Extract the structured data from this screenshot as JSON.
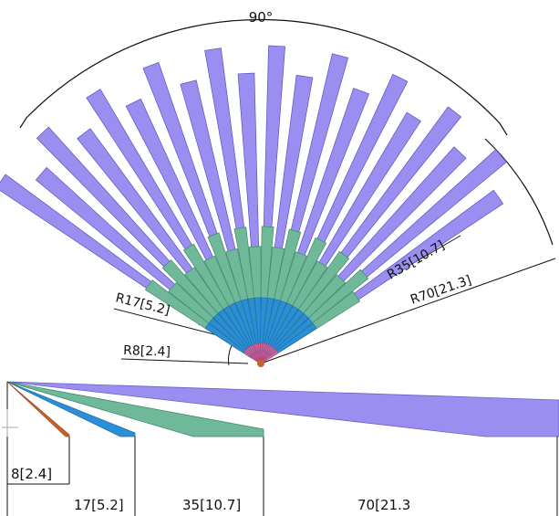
{
  "fan_view": {
    "angle_label": "90°",
    "radius_labels": {
      "r8": "R8[2.4]",
      "r17": "R17[5.2]",
      "r35": "R35[10.7]",
      "r70": "R70[21.3]"
    }
  },
  "side_view": {
    "length_labels": {
      "l8": "8[2.4]",
      "l17": "17[5.2]",
      "l35": "35[10.7]",
      "l70": "70[21.3"
    }
  },
  "colors": {
    "outer": "#9a8ff0",
    "outer_edge": "#5a50c0",
    "green": "#6fb89a",
    "green_dark": "#3f8c6c",
    "blue": "#2a8fd6",
    "orange": "#c8622a",
    "pink": "#e06aa0"
  }
}
